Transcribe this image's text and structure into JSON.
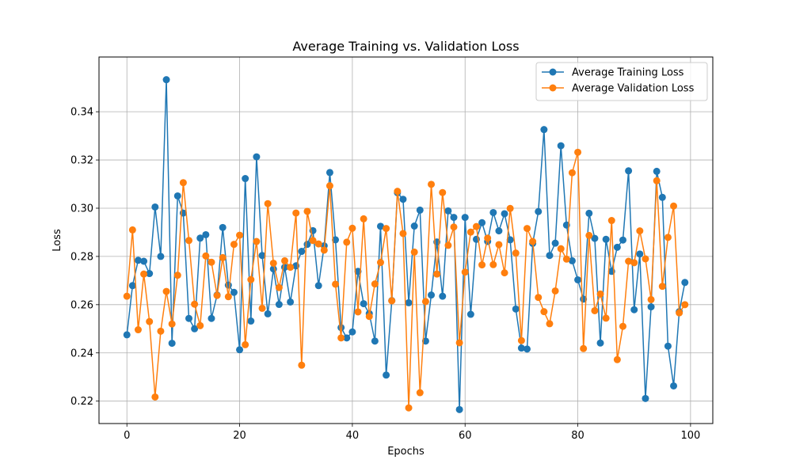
{
  "chart_data": {
    "type": "line",
    "title": "Average Training vs. Validation Loss",
    "xlabel": "Epochs",
    "ylabel": "Loss",
    "xlim": [
      -4.95,
      103.95
    ],
    "ylim": [
      0.2107,
      0.3627
    ],
    "xticks": [
      0,
      20,
      40,
      60,
      80,
      100
    ],
    "yticks": [
      0.22,
      0.24,
      0.26,
      0.28,
      0.3,
      0.32,
      0.34
    ],
    "ytick_labels": [
      "0.22",
      "0.24",
      "0.26",
      "0.28",
      "0.30",
      "0.32",
      "0.34"
    ],
    "grid": true,
    "legend_position": "top-right",
    "series": [
      {
        "name": "Average Training Loss",
        "color": "#1f77b4",
        "values": [
          0.2475,
          0.2679,
          0.2784,
          0.278,
          0.2729,
          0.3005,
          0.28,
          0.3533,
          0.244,
          0.3051,
          0.298,
          0.2543,
          0.25,
          0.2876,
          0.289,
          0.2543,
          0.264,
          0.292,
          0.2681,
          0.2651,
          0.2413,
          0.3123,
          0.2532,
          0.3213,
          0.2804,
          0.2562,
          0.2748,
          0.2601,
          0.2755,
          0.2611,
          0.2761,
          0.2821,
          0.285,
          0.2907,
          0.2679,
          0.2844,
          0.3148,
          0.2869,
          0.2505,
          0.2462,
          0.2487,
          0.2738,
          0.2604,
          0.2563,
          0.2449,
          0.2925,
          0.2308,
          0.2617,
          0.3064,
          0.3037,
          0.2608,
          0.2926,
          0.2992,
          0.2449,
          0.264,
          0.286,
          0.2635,
          0.2989,
          0.2962,
          0.2165,
          0.2962,
          0.256,
          0.2871,
          0.294,
          0.2862,
          0.2982,
          0.2906,
          0.2977,
          0.2869,
          0.2582,
          0.242,
          0.2416,
          0.2854,
          0.2986,
          0.3326,
          0.2804,
          0.2855,
          0.3259,
          0.293,
          0.2782,
          0.2703,
          0.2623,
          0.2979,
          0.2875,
          0.2441,
          0.2871,
          0.2738,
          0.2838,
          0.2868,
          0.3155,
          0.2579,
          0.281,
          0.2211,
          0.2591,
          0.3153,
          0.3045,
          0.2428,
          0.2263,
          0.2571,
          0.2692
        ]
      },
      {
        "name": "Average Validation Loss",
        "color": "#ff7f0e",
        "values": [
          0.2635,
          0.291,
          0.2496,
          0.2727,
          0.253,
          0.2217,
          0.249,
          0.2655,
          0.252,
          0.2722,
          0.3106,
          0.2866,
          0.2602,
          0.2513,
          0.2802,
          0.2776,
          0.2638,
          0.2795,
          0.2633,
          0.285,
          0.2888,
          0.2434,
          0.2704,
          0.2862,
          0.2585,
          0.3019,
          0.2772,
          0.2671,
          0.2782,
          0.2755,
          0.298,
          0.2349,
          0.2987,
          0.2866,
          0.2852,
          0.2826,
          0.3093,
          0.2685,
          0.2462,
          0.2859,
          0.2917,
          0.257,
          0.2956,
          0.2551,
          0.2686,
          0.2775,
          0.2916,
          0.2616,
          0.307,
          0.2895,
          0.2172,
          0.2818,
          0.2235,
          0.2613,
          0.3099,
          0.2727,
          0.3065,
          0.2846,
          0.2922,
          0.2442,
          0.2735,
          0.2901,
          0.2924,
          0.2765,
          0.2876,
          0.2766,
          0.2849,
          0.2732,
          0.2999,
          0.2814,
          0.2451,
          0.2916,
          0.2862,
          0.263,
          0.2571,
          0.2521,
          0.2657,
          0.2832,
          0.2789,
          0.3147,
          0.3232,
          0.2418,
          0.2887,
          0.2575,
          0.2644,
          0.2544,
          0.2949,
          0.2372,
          0.251,
          0.278,
          0.2774,
          0.2906,
          0.279,
          0.2621,
          0.3114,
          0.2676,
          0.2879,
          0.3009,
          0.2566,
          0.26
        ]
      }
    ]
  }
}
